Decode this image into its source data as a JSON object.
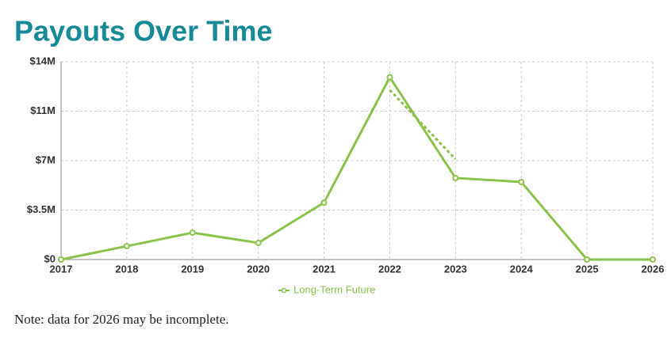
{
  "chart_data": {
    "type": "line",
    "title": "Payouts Over Time",
    "categories": [
      "2017",
      "2018",
      "2019",
      "2020",
      "2021",
      "2022",
      "2023",
      "2024",
      "2025",
      "2026"
    ],
    "series": [
      {
        "name": "Long-Term Future",
        "color": "#8bc34a",
        "values": [
          0,
          950000,
          1900000,
          1180000,
          4030000,
          12900000,
          5770000,
          5490000,
          0,
          0
        ]
      },
      {
        "color": "#8bc34a",
        "dashed": true,
        "values": [
          null,
          null,
          null,
          null,
          null,
          12000000,
          7100000,
          null,
          null,
          null
        ]
      }
    ],
    "ylim": [
      0,
      14000000
    ],
    "yticks": [
      {
        "value": 0,
        "label": "$0"
      },
      {
        "value": 3500000,
        "label": "$3.5M"
      },
      {
        "value": 7000000,
        "label": "$7M"
      },
      {
        "value": 10500000,
        "label": "$11M"
      },
      {
        "value": 14000000,
        "label": "$14M"
      }
    ],
    "grid": true,
    "legend": "bottom",
    "note": "Note: data for 2026 may be incomplete."
  }
}
